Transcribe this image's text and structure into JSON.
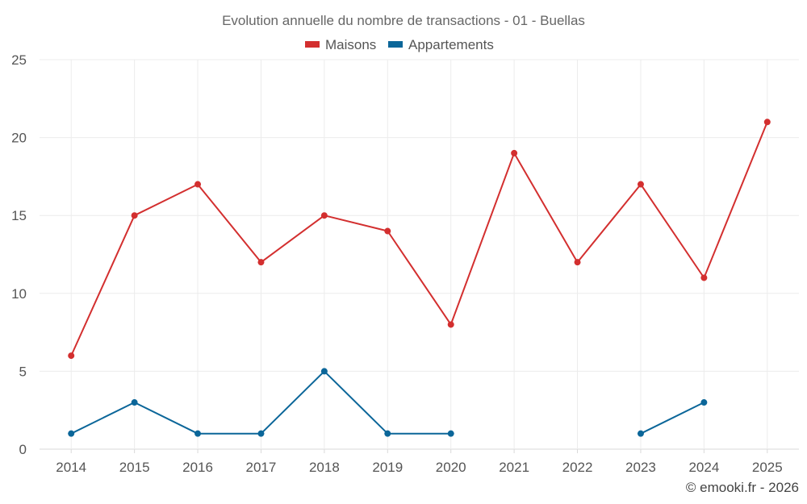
{
  "chart_data": {
    "type": "line",
    "title": "Evolution annuelle du nombre de transactions - 01 - Buellas",
    "categories": [
      "2014",
      "2015",
      "2016",
      "2017",
      "2018",
      "2019",
      "2020",
      "2021",
      "2022",
      "2023",
      "2024",
      "2025"
    ],
    "series": [
      {
        "name": "Maisons",
        "color": "#d32f2f",
        "values": [
          6,
          15,
          17,
          12,
          15,
          14,
          8,
          19,
          12,
          17,
          11,
          21
        ]
      },
      {
        "name": "Appartements",
        "color": "#0b6699",
        "values": [
          1,
          3,
          1,
          1,
          5,
          1,
          1,
          null,
          null,
          1,
          3,
          null
        ]
      }
    ],
    "ylim": [
      0,
      25
    ],
    "yticks": [
      0,
      5,
      10,
      15,
      20,
      25
    ],
    "xlabel": "",
    "ylabel": "",
    "grid": true,
    "legend": "top-center"
  },
  "credit": "© emooki.fr - 2026"
}
